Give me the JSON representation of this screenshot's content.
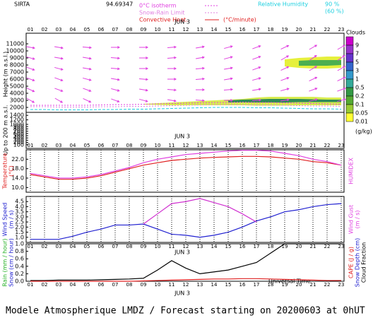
{
  "header": {
    "station": "SIRTA",
    "station_code": "94.69347",
    "convective_heat": "Convective Heat.",
    "convective_unit": "(°C/minute)",
    "humidity_high": "90 %",
    "humidity_low": "(60 %)"
  },
  "time_axis": {
    "categories": [
      "01",
      "02",
      "03",
      "04",
      "05",
      "06",
      "07",
      "08",
      "09",
      "10",
      "11",
      "12",
      "13",
      "14",
      "15",
      "16",
      "17",
      "18",
      "19",
      "20",
      "21",
      "22",
      "23"
    ],
    "date_label": "JUN 3",
    "label": "Universal Time"
  },
  "footer": "Modele Atmospherique LMDZ / Forecast starting on 20200603 at 0hUT",
  "chart_data": [
    {
      "type": "height",
      "ylabel": "Height (m a.s.l.)",
      "low_label": "Up to 200 m a.s.l.",
      "ylim": [
        1500,
        12000
      ],
      "yticks": [
        2000,
        3000,
        4000,
        5000,
        6000,
        7000,
        8000,
        9000,
        10000,
        11000
      ],
      "low_ylim": [
        0,
        1500
      ],
      "low_yticks": [
        100,
        200,
        300,
        400,
        500,
        600,
        700,
        800,
        900,
        1000,
        1200,
        1400
      ],
      "series": [
        {
          "name": "0°C isotherm",
          "color": "#e040e0",
          "values": [
            2300,
            2300,
            2300,
            2300,
            2300,
            2350,
            2400,
            2400,
            2450,
            2500,
            2550,
            2600,
            2650,
            2700,
            2700,
            2750,
            2700,
            2700,
            2650,
            2600,
            2550,
            2500,
            2450
          ]
        },
        {
          "name": "Snow-Rain Limit",
          "color": "#e080e0",
          "values": [
            2100,
            2100,
            2050,
            2050,
            2050,
            2100,
            2100,
            2150,
            2150,
            2200,
            2250,
            2300,
            2350,
            2400,
            2400,
            2400,
            2350,
            2350,
            2300,
            2250,
            2200,
            2200,
            2150
          ]
        },
        {
          "name": "Relative Humidity",
          "color": "#20d0e0",
          "values": [
            1700,
            1700,
            1650,
            1650,
            1650,
            1700,
            1700,
            1750,
            1750,
            1800,
            1850,
            1900,
            1950,
            2000,
            2000,
            2000,
            1950,
            1950,
            1900,
            1850,
            1800,
            1800,
            1750
          ]
        }
      ],
      "cloud_layers": [
        {
          "color": "#d8ec50",
          "base": [
            null,
            null,
            null,
            null,
            null,
            null,
            null,
            null,
            2400,
            2350,
            2300,
            2300,
            2300,
            2300,
            2300,
            2300,
            2250,
            2250,
            2250,
            2300,
            2300,
            2300,
            2300
          ],
          "top": [
            null,
            null,
            null,
            null,
            null,
            null,
            null,
            null,
            2500,
            2600,
            2700,
            2800,
            2900,
            3000,
            3100,
            3200,
            3400,
            3500,
            3500,
            3500,
            3500,
            3400,
            3400
          ]
        },
        {
          "color": "#2e8b57",
          "base": [
            null,
            null,
            null,
            null,
            null,
            null,
            null,
            null,
            null,
            null,
            null,
            null,
            null,
            null,
            2700,
            2700,
            2700,
            2700,
            2700,
            2750,
            2750,
            2750,
            2750
          ],
          "top": [
            null,
            null,
            null,
            null,
            null,
            null,
            null,
            null,
            null,
            null,
            null,
            null,
            null,
            null,
            3000,
            3100,
            3150,
            3200,
            3200,
            3200,
            3150,
            3100,
            3100
          ]
        },
        {
          "color": "#e6f03c",
          "base": [
            null,
            null,
            null,
            null,
            null,
            null,
            null,
            null,
            null,
            null,
            null,
            null,
            null,
            null,
            null,
            null,
            null,
            null,
            7800,
            7600,
            7500,
            7500,
            7600
          ],
          "top": [
            null,
            null,
            null,
            null,
            null,
            null,
            null,
            null,
            null,
            null,
            null,
            null,
            null,
            null,
            null,
            null,
            null,
            null,
            8800,
            9000,
            9100,
            9200,
            9200
          ]
        },
        {
          "color": "#4caf50",
          "base": [
            null,
            null,
            null,
            null,
            null,
            null,
            null,
            null,
            null,
            null,
            null,
            null,
            null,
            null,
            null,
            null,
            null,
            null,
            null,
            7900,
            7900,
            7900,
            8000
          ],
          "top": [
            null,
            null,
            null,
            null,
            null,
            null,
            null,
            null,
            null,
            null,
            null,
            null,
            null,
            null,
            null,
            null,
            null,
            null,
            null,
            8600,
            8700,
            8700,
            8700
          ]
        }
      ],
      "wind": {
        "color": "#e040e0",
        "levels": [
          10500,
          9000,
          7500,
          6000,
          4500,
          3000
        ],
        "angles": [
          [
            -10,
            -10,
            -5,
            0,
            0,
            5,
            10,
            15,
            20,
            25,
            30,
            30
          ],
          [
            -15,
            -10,
            -10,
            -5,
            0,
            5,
            10,
            15,
            20,
            30,
            35,
            35
          ],
          [
            -20,
            -15,
            -10,
            -5,
            0,
            0,
            5,
            10,
            20,
            25,
            30,
            30
          ],
          [
            -20,
            -20,
            -15,
            -10,
            -5,
            0,
            5,
            10,
            15,
            20,
            25,
            25
          ],
          [
            -25,
            -20,
            -20,
            -15,
            -10,
            -5,
            0,
            5,
            10,
            15,
            20,
            20
          ],
          [
            -30,
            -30,
            -25,
            -20,
            -15,
            -10,
            -5,
            0,
            5,
            10,
            15,
            15
          ]
        ]
      },
      "colorbar": {
        "title": "Clouds",
        "unit": "(g/kg)",
        "ticks": [
          9,
          7,
          5,
          3,
          1,
          0.5,
          0.2,
          0.1,
          0.05,
          0.01
        ],
        "colors": [
          "#cc00cc",
          "#9933cc",
          "#6633cc",
          "#3366cc",
          "#3399cc",
          "#33aa99",
          "#339944",
          "#55aa33",
          "#99cc33",
          "#ffff33"
        ]
      }
    },
    {
      "type": "line",
      "ylim": [
        8,
        26
      ],
      "yticks": [
        {
          "value": 10,
          "label": "10.0"
        },
        {
          "value": 14,
          "label": "14.0"
        },
        {
          "value": 18,
          "label": "18.0"
        },
        {
          "value": 22,
          "label": "22.0"
        }
      ],
      "ylabels": [
        {
          "text": "Temperature",
          "color": "#e02020"
        },
        {
          "text": "(°C)",
          "color": "#e02020"
        }
      ],
      "y2labels": [
        {
          "text": "HUMIDEX",
          "color": "#e040e0"
        }
      ],
      "series": [
        {
          "color": "#e02020",
          "values": [
            15.5,
            14.5,
            13.5,
            13.5,
            14,
            15,
            16.5,
            18,
            19.5,
            20.5,
            21.5,
            22,
            22.5,
            22.8,
            23,
            23.2,
            23.2,
            23,
            22.5,
            22,
            21,
            20.5,
            19.5
          ]
        },
        {
          "color": "#e040e0",
          "values": [
            16,
            15,
            14,
            14,
            14.5,
            15.5,
            17,
            18.5,
            20.5,
            22,
            23,
            24,
            24.5,
            25,
            25.5,
            25.8,
            25.8,
            25.5,
            24.5,
            23.5,
            22,
            21,
            19.5
          ]
        }
      ]
    },
    {
      "type": "line",
      "ylim": [
        0.5,
        5
      ],
      "yticks": [
        {
          "value": 1,
          "label": "1.0"
        },
        1.5,
        {
          "value": 2,
          "label": "2.0"
        },
        2.5,
        {
          "value": 3,
          "label": "3.0"
        },
        3.5,
        {
          "value": 4,
          "label": "4.0"
        },
        4.5
      ],
      "ylabels": [
        {
          "text": "Wind Speed",
          "color": "#2020d0"
        },
        {
          "text": "(m / s)",
          "color": "#2020d0"
        }
      ],
      "y2labels": [
        {
          "text": "Wind Gust",
          "color": "#e040e0"
        },
        {
          "text": "(m / s)",
          "color": "#e040e0"
        }
      ],
      "series": [
        {
          "color": "#2020d0",
          "values": [
            0.8,
            0.8,
            0.8,
            1.1,
            1.5,
            1.8,
            2.2,
            2.2,
            2.3,
            1.8,
            1.3,
            1.2,
            1.0,
            1.2,
            1.5,
            2.0,
            2.6,
            3.0,
            3.5,
            3.7,
            4.0,
            4.2,
            4.3
          ]
        },
        {
          "color": "#d030d0",
          "values": [
            null,
            null,
            null,
            null,
            null,
            null,
            null,
            null,
            2.3,
            3.3,
            4.3,
            4.5,
            4.8,
            4.4,
            4.0,
            3.3,
            2.5,
            null,
            null,
            null,
            null,
            null,
            null
          ]
        }
      ]
    },
    {
      "type": "line",
      "ylim": [
        0,
        1
      ],
      "yticks": [
        {
          "value": 0,
          "label": "0.0"
        },
        0.2,
        0.4,
        0.6,
        0.8,
        {
          "value": 1,
          "label": "1.0"
        }
      ],
      "ylabels": [
        {
          "text": "Rain (mm / hour)",
          "color": "#20b020"
        },
        {
          "text": "Snow (cm / hour)",
          "color": "#2020d0"
        }
      ],
      "y2labels": [
        {
          "text": "CAPE (J / g)",
          "color": "#e02020"
        },
        {
          "text": "Snow Depth (cm)",
          "color": "#2020d0"
        },
        {
          "text": "Cloud Fraction",
          "color": "#000000"
        }
      ],
      "series": [
        {
          "color": "#000000",
          "values": [
            0.02,
            0.02,
            0.03,
            0.03,
            0.03,
            0.04,
            0.05,
            0.06,
            0.08,
            0.3,
            0.55,
            0.35,
            0.2,
            0.25,
            0.3,
            0.4,
            0.5,
            0.75,
            1,
            1,
            1,
            1,
            1
          ]
        },
        {
          "color": "#e02020",
          "values": [
            0,
            0,
            0,
            0,
            0,
            0,
            0,
            0,
            0.01,
            0.02,
            0.03,
            0.04,
            0.05,
            0.06,
            0.06,
            0.07,
            0.07,
            0.06,
            0.05,
            0.04,
            0.03,
            0.02,
            0.02
          ]
        }
      ]
    }
  ]
}
